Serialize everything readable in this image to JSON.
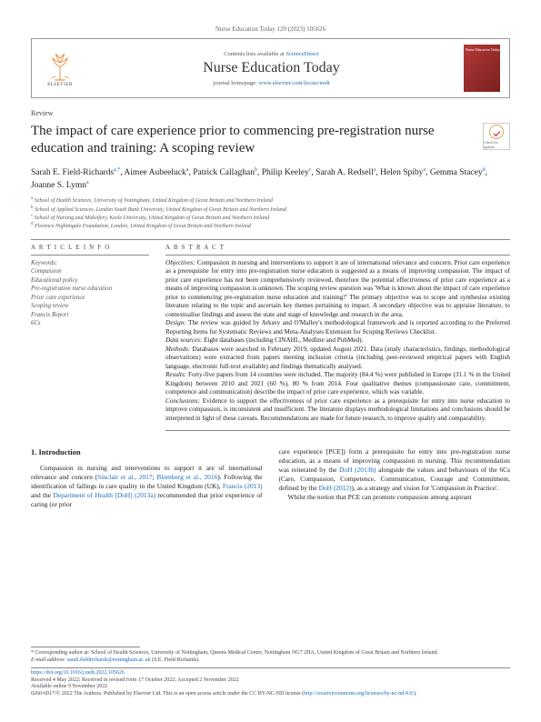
{
  "running_header": "Nurse Education Today 120 (2023) 105626",
  "banner": {
    "contents_prefix": "Contents lists available at ",
    "contents_link": "ScienceDirect",
    "journal_name": "Nurse Education Today",
    "homepage_prefix": "journal homepage: ",
    "homepage_link": "www.elsevier.com/locate/nedt",
    "elsevier_label": "ELSEVIER",
    "cover_label": "Nurse Education Today"
  },
  "article_type": "Review",
  "title": "The impact of care experience prior to commencing pre-registration nurse education and training: A scoping review",
  "check_badge": "Check for updates",
  "authors_html": "Sarah E. Field-Richards<sup>a,*</sup>, Aimee Aubeeluck<sup>a</sup>, Patrick Callaghan<sup>b</sup>, Philip Keeley<sup>c</sup>, Sarah A. Redsell<sup>a</sup>, Helen Spiby<sup>a</sup>, Gemma Stacey<sup>d</sup>, Joanne S. Lymn<sup>a</sup>",
  "affiliations": [
    {
      "sup": "a",
      "text": " School of Health Sciences, University of Nottingham, United Kingdom of Great Britain and Northern Ireland"
    },
    {
      "sup": "b",
      "text": " School of Applied Sciences, London South Bank University, United Kingdom of Great Britain and Northern Ireland"
    },
    {
      "sup": "c",
      "text": " School of Nursing and Midwifery, Keele University, United Kingdom of Great Britain and Northern Ireland"
    },
    {
      "sup": "d",
      "text": " Florence Nightingale Foundation, London, United Kingdom of Great Britain and Northern Ireland"
    }
  ],
  "article_info_head": "A R T I C L E  I N F O",
  "abstract_head": "A B S T R A C T",
  "keywords_label": "Keywords:",
  "keywords": [
    "Compassion",
    "Educational policy",
    "Pre-registration nurse education",
    "Prior care experience",
    "Scoping review",
    "Francis Report",
    "6Cs"
  ],
  "abstract_paragraphs": [
    {
      "label": "Objectives:",
      "text": " Compassion in nursing and interventions to support it are of international relevance and concern. Prior care experience as a prerequisite for entry into pre-registration nurse education is suggested as a means of improving compassion. The impact of prior care experience has not been comprehensively reviewed, therefore the potential effectiveness of prior care experience as a means of improving compassion is unknown. The scoping review question was 'What is known about the impact of care experience prior to commencing pre-registration nurse education and training?' The primary objective was to scope and synthesise existing literature relating to the topic and ascertain key themes pertaining to impact. A secondary objective was to appraise literature, to contextualise findings and assess the state and stage of knowledge and research in the area."
    },
    {
      "label": "Design:",
      "text": " The review was guided by Arksey and O'Malley's methodological framework and is reported according to the Preferred Reporting Items for Systematic Reviews and Meta-Analyses Extension for Scoping Reviews Checklist."
    },
    {
      "label": "Data sources:",
      "text": " Eight databases (including CINAHL, Medline and PubMed)."
    },
    {
      "label": "Methods:",
      "text": " Databases were searched in February 2019, updated August 2021. Data (study characteristics, findings, methodological observations) were extracted from papers meeting inclusion criteria (including peer-reviewed empirical papers with English language, electronic full-text available) and findings thematically analysed."
    },
    {
      "label": "Results:",
      "text": " Forty-five papers from 14 countries were included. The majority (84.4 %) were published in Europe (31.1 % in the United Kingdom) between 2010 and 2021 (60 %), 80 % from 2014. Four qualitative themes (compassionate care, commitment, competence and communication) describe the impact of prior care experience, which was variable."
    },
    {
      "label": "Conclusions:",
      "text": " Evidence to support the effectiveness of prior care experience as a prerequisite for entry into nurse education to improve compassion, is inconsistent and insufficient. The literature displays methodological limitations and conclusions should be interpreted in light of these caveats. Recommendations are made for future research, to improve quality and comparability."
    }
  ],
  "intro": {
    "heading": "1. Introduction",
    "col1": "Compassion in nursing and interventions to support it are of international relevance and concern (Sinclair et al., 2017; Blomberg et al., 2016). Following the identification of failings in care quality in the United Kingdom (UK), Francis (2013) and the Department of Health [DoH] (2013a) recommended that prior experience of caring (or prior",
    "col2": "care experience [PCE]) form a prerequisite for entry into pre-registration nurse education, as a means of improving compassion in nursing. This recommendation was reiterated by the DoH (2013b) alongside the values and behaviours of the 6Cs (Care, Compassion, Competence, Communication, Courage and Commitment, defined by the DoH (2012)), as a strategy and vision for 'Compassion in Practice'.",
    "col2_line2": "Whilst the notion that PCE can promote compassion among aspirant"
  },
  "footer": {
    "corr": "* Corresponding author at: School of Health Sciences, University of Nottingham, Queens Medical Centre, Nottingham NG7 2HA, United Kingdom of Great Britain and Northern Ireland.",
    "email_label": "E-mail address: ",
    "email": "sarah.fieldrichards@nottingham.ac.uk",
    "email_suffix": " (S.E. Field-Richards).",
    "doi": "https://doi.org/10.1016/j.nedt.2022.105626",
    "received": "Received 4 May 2022; Received in revised form 17 October 2022; Accepted 2 November 2022",
    "available": "Available online 9 November 2022",
    "copyright": "0260-6917/© 2022 The Authors. Published by Elsevier Ltd. This is an open access article under the CC BY-NC-ND license (http://creativecommons.org/licenses/by-nc-nd/4.0/)."
  },
  "colors": {
    "link": "#1a6bb8",
    "text": "#222222",
    "muted": "#555555",
    "rule": "#888888",
    "cover_grad_a": "#b33939",
    "cover_grad_b": "#7a1f1f"
  },
  "fonts": {
    "body_pt": 8,
    "title_pt": 15,
    "journal_pt": 16,
    "abstract_pt": 7.2
  }
}
